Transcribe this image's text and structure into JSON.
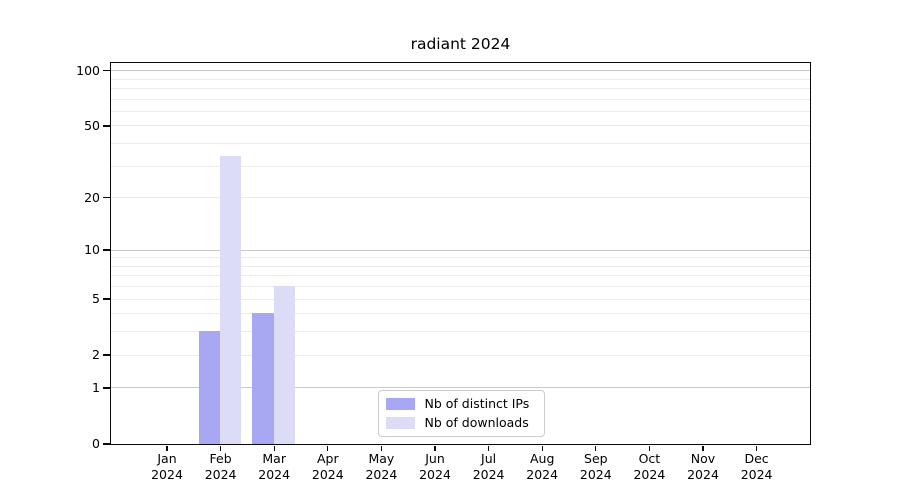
{
  "chart_data": {
    "type": "bar",
    "title": "radiant 2024",
    "scale": "log1p",
    "categories": [
      "Jan 2024",
      "Feb 2024",
      "Mar 2024",
      "Apr 2024",
      "May 2024",
      "Jun 2024",
      "Jul 2024",
      "Aug 2024",
      "Sep 2024",
      "Oct 2024",
      "Nov 2024",
      "Dec 2024"
    ],
    "series": [
      {
        "name": "Nb of distinct IPs",
        "color": "#a8a8f2",
        "values": [
          0,
          3,
          4,
          0,
          0,
          0,
          0,
          0,
          0,
          0,
          0,
          0
        ]
      },
      {
        "name": "Nb of downloads",
        "color": "#dcdcf7",
        "values": [
          0,
          34,
          6,
          0,
          0,
          0,
          0,
          0,
          0,
          0,
          0,
          0
        ]
      }
    ],
    "xlabel": "",
    "ylabel": "",
    "y_ticks": [
      0,
      1,
      2,
      5,
      10,
      20,
      50,
      100
    ],
    "ylim": [
      0,
      110
    ],
    "grid": "horizontal",
    "grid_major": [
      1,
      10,
      100
    ],
    "grid_minor": [
      2,
      3,
      4,
      5,
      6,
      7,
      8,
      9,
      20,
      30,
      40,
      50,
      60,
      70,
      80,
      90
    ],
    "legend_position": "lower center"
  }
}
